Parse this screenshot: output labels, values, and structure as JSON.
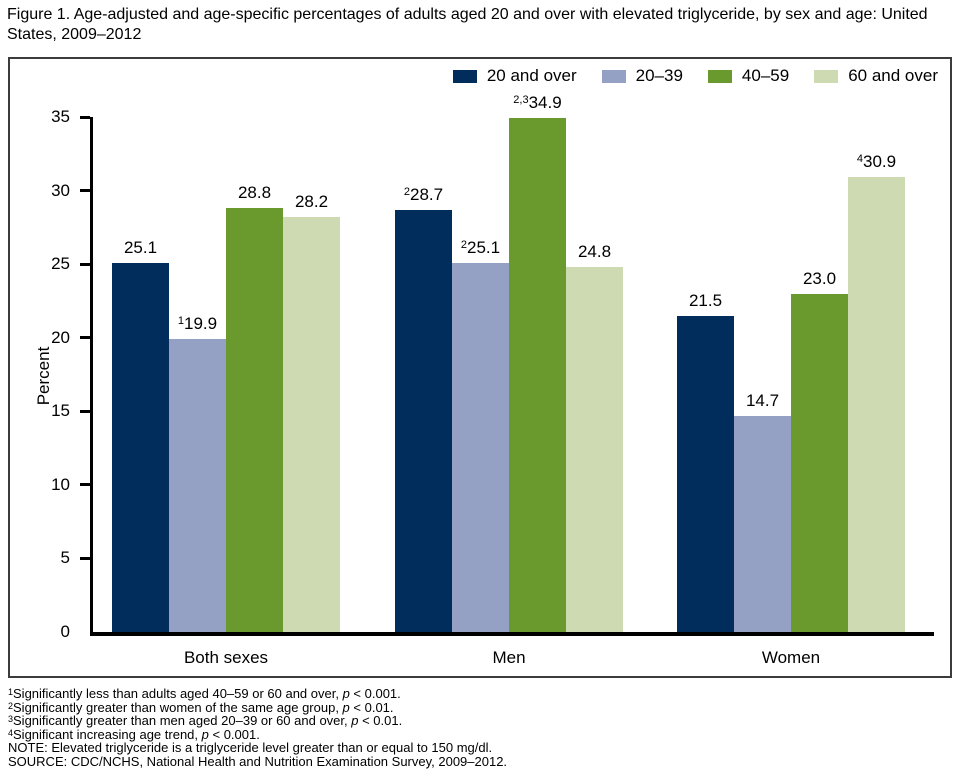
{
  "chart_data": {
    "type": "bar",
    "title": "Figure 1. Age-adjusted and age-specific percentages of adults aged 20 and over with elevated triglyceride, by sex and age: United States, 2009–2012",
    "categories": [
      "Both sexes",
      "Men",
      "Women"
    ],
    "series": [
      {
        "name": "20 and over",
        "color": "#002d5c",
        "values": [
          25.1,
          28.7,
          21.5
        ],
        "display": [
          "25.1",
          "28.7",
          "21.5"
        ],
        "label_sups": [
          "",
          "2",
          ""
        ]
      },
      {
        "name": "20–39",
        "color": "#95a1c4",
        "values": [
          19.9,
          25.1,
          14.7
        ],
        "display": [
          "19.9",
          "25.1",
          "14.7"
        ],
        "label_sups": [
          "1",
          "2",
          ""
        ]
      },
      {
        "name": "40–59",
        "color": "#6a9a2e",
        "values": [
          28.8,
          34.9,
          23.0
        ],
        "display": [
          "28.8",
          "34.9",
          "23.0"
        ],
        "label_sups": [
          "",
          "2,3",
          ""
        ]
      },
      {
        "name": "60 and over",
        "color": "#cedab2",
        "values": [
          28.2,
          24.8,
          30.9
        ],
        "display": [
          "28.2",
          "24.8",
          "30.9"
        ],
        "label_sups": [
          "",
          "",
          "4"
        ]
      }
    ],
    "xlabel": "",
    "ylabel": "Percent",
    "ylim": [
      0,
      35
    ],
    "ytick_step": 5,
    "grid": false,
    "legend_position": "top-right"
  },
  "footnotes": [
    {
      "sup": "1",
      "text": "Significantly less than adults aged 40–59 or 60 and over, ",
      "italic": "p",
      "tail": " < 0.001."
    },
    {
      "sup": "2",
      "text": "Significantly greater than women of the same age group, ",
      "italic": "p",
      "tail": " < 0.01."
    },
    {
      "sup": "3",
      "text": "Significantly greater than men aged 20–39 or 60 and over, ",
      "italic": "p",
      "tail": " < 0.01."
    },
    {
      "sup": "4",
      "text": "Significant increasing age trend, ",
      "italic": "p",
      "tail": " < 0.001."
    },
    {
      "sup": "",
      "text": "NOTE: Elevated triglyceride is a triglyceride level greater than or equal to 150 mg/dl.",
      "italic": "",
      "tail": ""
    },
    {
      "sup": "",
      "text": "SOURCE: CDC/NCHS, National Health and Nutrition Examination Survey, 2009–2012.",
      "italic": "",
      "tail": ""
    }
  ]
}
